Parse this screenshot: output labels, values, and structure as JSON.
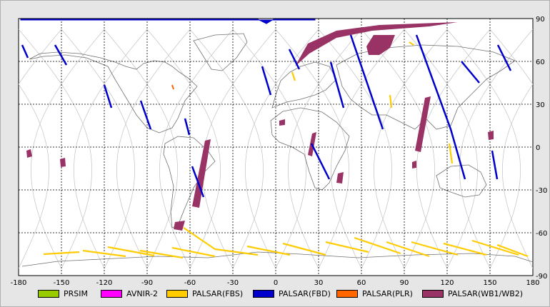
{
  "map": {
    "lon_ticks": [
      "-180",
      "-150",
      "-120",
      "-90",
      "-60",
      "-30",
      "0",
      "30",
      "60",
      "90",
      "120",
      "150",
      "180"
    ],
    "lat_ticks": [
      "90",
      "60",
      "30",
      "0",
      "-30",
      "-60",
      "-90"
    ],
    "lon_range": [
      -180,
      180
    ],
    "lat_range": [
      -90,
      90
    ],
    "grid": "dashed"
  },
  "legend": [
    {
      "label": "PRSIM",
      "color": "#99cc00"
    },
    {
      "label": "AVNIR-2",
      "color": "#ff00ff"
    },
    {
      "label": "PALSAR(FBS)",
      "color": "#ffcc00"
    },
    {
      "label": "PALSAR(FBD)",
      "color": "#0000cc"
    },
    {
      "label": "PALSAR(PLR)",
      "color": "#ff6600"
    },
    {
      "label": "PALSAR(WB1/WB2)",
      "color": "#993366"
    }
  ]
}
